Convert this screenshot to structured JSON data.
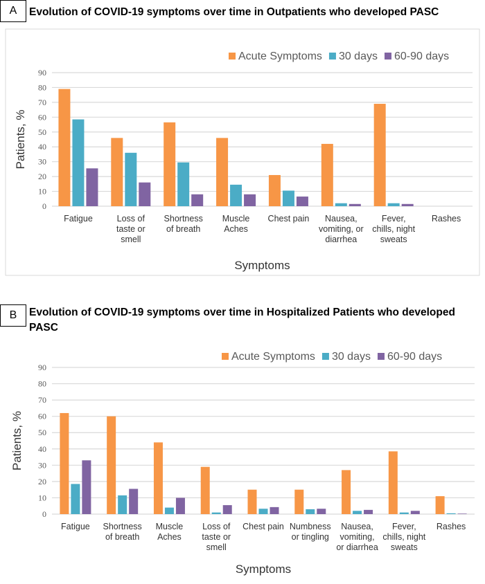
{
  "colors": {
    "acute": "#F79646",
    "d30": "#4BACC6",
    "d6090": "#8064A2",
    "grid": "#d9d9d9",
    "text": "#595959"
  },
  "panels": [
    {
      "letter": "A",
      "title": "Evolution of COVID-19 symptoms over time in Outpatients who developed PASC"
    },
    {
      "letter": "B",
      "title": "Evolution of COVID-19 symptoms over time in Hospitalized Patients who developed PASC"
    }
  ],
  "chart_data": [
    {
      "type": "bar",
      "title": "Evolution of COVID-19 symptoms over time in Outpatients who developed PASC",
      "xlabel": "Symptoms",
      "ylabel": "Patients, %",
      "ylim": [
        0,
        90
      ],
      "yticks": [
        0,
        10,
        20,
        30,
        40,
        50,
        60,
        70,
        80,
        90
      ],
      "grid": true,
      "legend": "top-right",
      "categories": [
        "Fatigue",
        "Loss of taste or smell",
        "Shortness of breath",
        "Muscle Aches",
        "Chest pain",
        "Nausea, vomiting, or diarrhea",
        "Fever, chills, night sweats",
        "Rashes"
      ],
      "category_lines": [
        [
          "Fatigue"
        ],
        [
          "Loss of",
          "taste or",
          "smell"
        ],
        [
          "Shortness",
          "of breath"
        ],
        [
          "Muscle",
          "Aches"
        ],
        [
          "Chest pain"
        ],
        [
          "Nausea,",
          "vomiting, or",
          "diarrhea"
        ],
        [
          "Fever,",
          "chills, night",
          "sweats"
        ],
        [
          "Rashes"
        ]
      ],
      "series": [
        {
          "name": "Acute Symptoms",
          "values": [
            79,
            46,
            56.5,
            46,
            21,
            42,
            69,
            0
          ]
        },
        {
          "name": "30 days",
          "values": [
            58.5,
            36,
            29.5,
            14.5,
            10.5,
            2,
            2,
            0
          ]
        },
        {
          "name": "60-90 days",
          "values": [
            25.5,
            16,
            8,
            8,
            6.5,
            1.5,
            1.5,
            0
          ]
        }
      ]
    },
    {
      "type": "bar",
      "title": "Evolution of COVID-19 symptoms over time in Hospitalized Patients who developed PASC",
      "xlabel": "Symptoms",
      "ylabel": "Patients, %",
      "ylim": [
        0,
        90
      ],
      "yticks": [
        0,
        10,
        20,
        30,
        40,
        50,
        60,
        70,
        80,
        90
      ],
      "grid": true,
      "legend": "top-right",
      "categories": [
        "Fatigue",
        "Shortness of breath",
        "Muscle Aches",
        "Loss of taste or smell",
        "Chest pain",
        "Numbness or tingling",
        "Nausea, vomiting, or diarrhea",
        "Fever, chills, night sweats",
        "Rashes"
      ],
      "category_lines": [
        [
          "Fatigue"
        ],
        [
          "Shortness",
          "of breath"
        ],
        [
          "Muscle",
          "Aches"
        ],
        [
          "Loss of",
          "taste or",
          "smell"
        ],
        [
          "Chest pain"
        ],
        [
          "Numbness",
          "or tingling"
        ],
        [
          "Nausea,",
          "vomiting,",
          "or diarrhea"
        ],
        [
          "Fever,",
          "chills, night",
          "sweats"
        ],
        [
          "Rashes"
        ]
      ],
      "series": [
        {
          "name": "Acute Symptoms",
          "values": [
            62,
            60,
            44,
            29,
            15,
            15,
            27,
            38.5,
            11
          ]
        },
        {
          "name": "30 days",
          "values": [
            18.5,
            11.5,
            4,
            1,
            3.3,
            3,
            2,
            1,
            0.5
          ]
        },
        {
          "name": "60-90 days",
          "values": [
            33,
            15.5,
            10,
            5.5,
            4.3,
            3.3,
            2.6,
            2,
            0.3
          ]
        }
      ]
    }
  ]
}
